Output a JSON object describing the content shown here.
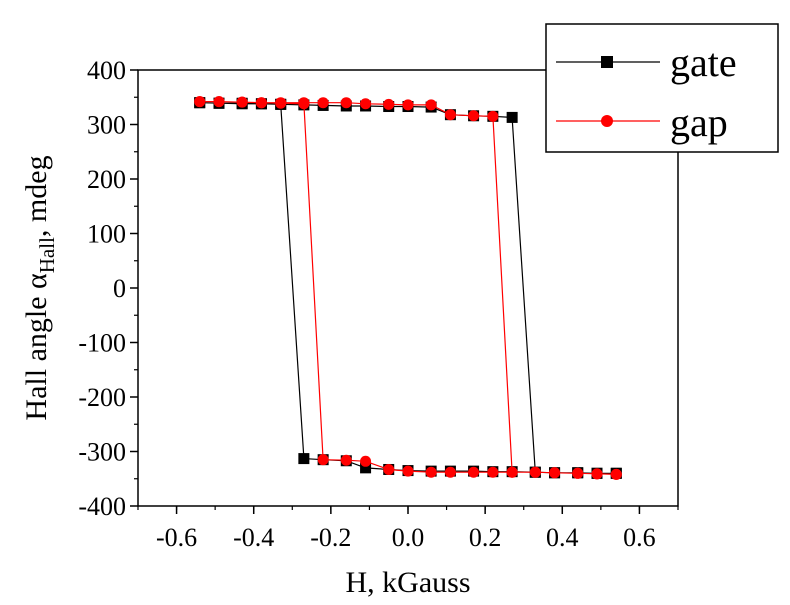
{
  "chart_data": {
    "type": "line",
    "title": "",
    "xlabel": "H, kGauss",
    "ylabel": {
      "main": "Hall angle α",
      "subscript": "Hall",
      "suffix": ", mdeg"
    },
    "xlim": [
      -0.7,
      0.7
    ],
    "ylim": [
      -400,
      400
    ],
    "xticks": [
      -0.6,
      -0.4,
      -0.2,
      0.0,
      0.2,
      0.4,
      0.6
    ],
    "xtick_labels": [
      "-0.6",
      "-0.4",
      "-0.2",
      "0.0",
      "0.2",
      "0.4",
      "0.6"
    ],
    "yticks": [
      -400,
      -300,
      -200,
      -100,
      0,
      100,
      200,
      300,
      400
    ],
    "ytick_labels": [
      "-400",
      "-300",
      "-200",
      "-100",
      "0",
      "100",
      "200",
      "300",
      "400"
    ],
    "grid": false,
    "legend_position": "top-right",
    "series": [
      {
        "name": "gate",
        "color": "#000000",
        "marker": "square",
        "x": [
          -0.54,
          -0.49,
          -0.43,
          -0.38,
          -0.33,
          -0.27,
          -0.22,
          -0.16,
          -0.11,
          -0.05,
          0.0,
          0.06,
          0.11,
          0.17,
          0.22,
          0.27,
          0.33,
          0.38,
          0.44,
          0.49,
          0.54,
          0.54,
          0.49,
          0.44,
          0.38,
          0.33,
          0.27,
          0.22,
          0.17,
          0.11,
          0.06,
          0.0,
          -0.05,
          -0.11,
          -0.16,
          -0.22,
          -0.27,
          -0.33,
          -0.38,
          -0.43,
          -0.49,
          -0.54
        ],
        "y": [
          340,
          339,
          338,
          338,
          337,
          336,
          335,
          334,
          334,
          333,
          333,
          332,
          318,
          316,
          315,
          313,
          -338,
          -339,
          -339,
          -340,
          -340,
          -340,
          -340,
          -339,
          -339,
          -338,
          -337,
          -337,
          -336,
          -336,
          -336,
          -335,
          -333,
          -330,
          -317,
          -315,
          -313,
          337,
          338,
          339,
          339,
          340
        ]
      },
      {
        "name": "gap",
        "color": "#ff0000",
        "marker": "circle",
        "x": [
          -0.54,
          -0.49,
          -0.43,
          -0.38,
          -0.33,
          -0.27,
          -0.22,
          -0.16,
          -0.11,
          -0.05,
          0.0,
          0.06,
          0.11,
          0.17,
          0.22,
          0.27,
          0.33,
          0.38,
          0.44,
          0.49,
          0.54,
          0.54,
          0.49,
          0.44,
          0.38,
          0.33,
          0.27,
          0.22,
          0.17,
          0.11,
          0.06,
          0.0,
          -0.05,
          -0.11,
          -0.16,
          -0.22,
          -0.27,
          -0.33,
          -0.38,
          -0.43,
          -0.49,
          -0.54
        ],
        "y": [
          342,
          342,
          341,
          340,
          340,
          340,
          340,
          340,
          338,
          337,
          336,
          336,
          318,
          316,
          315,
          -338,
          -338,
          -339,
          -340,
          -341,
          -342,
          -342,
          -341,
          -340,
          -339,
          -338,
          -338,
          -338,
          -338,
          -338,
          -338,
          -336,
          -333,
          -318,
          -316,
          -315,
          338,
          339,
          340,
          341,
          342,
          342
        ]
      }
    ]
  }
}
